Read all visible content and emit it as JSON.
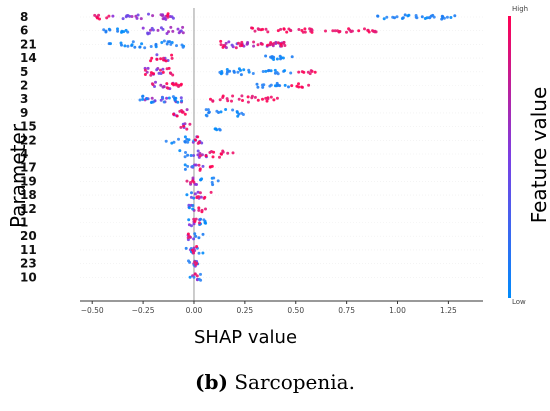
{
  "chart_data": {
    "type": "scatter",
    "subtype": "beeswarm",
    "xlabel": "SHAP value",
    "ylabel": "Parameter",
    "xlim": [
      -0.56,
      1.42
    ],
    "xticks": [
      "−0.50",
      "−0.25",
      "0.00",
      "0.25",
      "0.50",
      "0.75",
      "1.00",
      "1.25"
    ],
    "xtick_values": [
      -0.5,
      -0.25,
      0,
      0.25,
      0.5,
      0.75,
      1.0,
      1.25
    ],
    "colorbar": {
      "label": "Feature value",
      "high": "High",
      "low": "Low",
      "high_color": "#ff0052",
      "low_color": "#008bfb"
    },
    "features": [
      {
        "name": "8",
        "low": [
          [
            0.9,
            1.3
          ]
        ],
        "high": [
          [
            -0.5,
            -0.4
          ],
          [
            -0.15,
            -0.12
          ]
        ],
        "mixed": [
          [
            -0.4,
            -0.1
          ]
        ]
      },
      {
        "name": "6",
        "low": [
          [
            -0.45,
            -0.3
          ]
        ],
        "high": [
          [
            0.28,
            0.9
          ]
        ],
        "mixed": [
          [
            -0.3,
            -0.05
          ]
        ]
      },
      {
        "name": "21",
        "low": [
          [
            -0.42,
            -0.05
          ]
        ],
        "high": [
          [
            0.1,
            0.47
          ]
        ],
        "mixed": [
          [
            0.15,
            0.45
          ]
        ]
      },
      {
        "name": "14",
        "low": [
          [
            0.35,
            0.5
          ]
        ],
        "high": [
          [
            -0.22,
            -0.1
          ]
        ],
        "mixed": [
          [
            -0.2,
            -0.12
          ]
        ]
      },
      {
        "name": "5",
        "low": [
          [
            0.12,
            0.5
          ]
        ],
        "high": [
          [
            -0.25,
            -0.1
          ],
          [
            0.5,
            0.6
          ]
        ],
        "mixed": [
          [
            -0.24,
            -0.12
          ]
        ]
      },
      {
        "name": "2",
        "low": [
          [
            0.3,
            0.48
          ]
        ],
        "high": [
          [
            -0.22,
            -0.05
          ],
          [
            0.48,
            0.57
          ]
        ],
        "mixed": [
          [
            -0.2,
            -0.1
          ]
        ]
      },
      {
        "name": "3",
        "low": [
          [
            -0.27,
            -0.05
          ]
        ],
        "high": [
          [
            0.08,
            0.42
          ]
        ],
        "mixed": [
          [
            -0.25,
            -0.05
          ]
        ]
      },
      {
        "name": "9",
        "low": [
          [
            0.03,
            0.25
          ]
        ],
        "high": [
          [
            -0.11,
            -0.02
          ]
        ],
        "mixed": [
          [
            -0.1,
            -0.03
          ]
        ]
      },
      {
        "name": "15",
        "low": [
          [
            0.1,
            0.16
          ]
        ],
        "high": [
          [
            -0.07,
            -0.02
          ]
        ],
        "mixed": [
          [
            -0.06,
            -0.02
          ]
        ]
      },
      {
        "name": "22",
        "low": [
          [
            -0.14,
            0.0
          ]
        ],
        "high": [
          [
            0.0,
            0.07
          ]
        ],
        "mixed": [
          [
            -0.02,
            0.05
          ]
        ]
      },
      {
        "name": "4",
        "low": [
          [
            -0.07,
            0.0
          ]
        ],
        "high": [
          [
            0.03,
            0.2
          ]
        ],
        "mixed": [
          [
            -0.03,
            0.08
          ]
        ]
      },
      {
        "name": "17",
        "low": [
          [
            -0.05,
            0.0
          ]
        ],
        "high": [
          [
            0.02,
            0.1
          ]
        ],
        "mixed": [
          [
            -0.02,
            0.05
          ]
        ]
      },
      {
        "name": "19",
        "low": [
          [
            0.02,
            0.12
          ]
        ],
        "high": [
          [
            -0.05,
            0.0
          ]
        ],
        "mixed": [
          [
            -0.04,
            0.02
          ]
        ]
      },
      {
        "name": "18",
        "low": [
          [
            -0.04,
            0.0
          ]
        ],
        "high": [
          [
            0.01,
            0.1
          ]
        ],
        "mixed": [
          [
            -0.02,
            0.04
          ]
        ]
      },
      {
        "name": "12",
        "low": [
          [
            -0.04,
            0.0
          ]
        ],
        "high": [
          [
            0.0,
            0.06
          ]
        ],
        "mixed": [
          [
            -0.03,
            0.02
          ]
        ]
      },
      {
        "name": "1",
        "low": [
          [
            -0.04,
            0.06
          ]
        ],
        "high": [
          [
            -0.02,
            0.03
          ]
        ],
        "mixed": [
          [
            -0.03,
            0.03
          ]
        ]
      },
      {
        "name": "20",
        "low": [
          [
            0.0,
            0.05
          ]
        ],
        "high": [
          [
            -0.04,
            0.0
          ]
        ],
        "mixed": [
          [
            -0.03,
            0.02
          ]
        ]
      },
      {
        "name": "11",
        "low": [
          [
            -0.04,
            0.05
          ]
        ],
        "high": [
          [
            -0.03,
            0.02
          ]
        ],
        "mixed": [
          [
            -0.02,
            0.02
          ]
        ]
      },
      {
        "name": "23",
        "low": [
          [
            -0.03,
            0.03
          ]
        ],
        "high": [
          [
            -0.02,
            0.02
          ]
        ],
        "mixed": [
          [
            -0.02,
            0.02
          ]
        ]
      },
      {
        "name": "10",
        "low": [
          [
            -0.02,
            0.04
          ]
        ],
        "high": [
          [
            -0.01,
            0.02
          ]
        ],
        "mixed": [
          [
            -0.01,
            0.02
          ]
        ]
      }
    ]
  },
  "caption": {
    "bold": "(b)",
    "text": " Sarcopenia."
  }
}
